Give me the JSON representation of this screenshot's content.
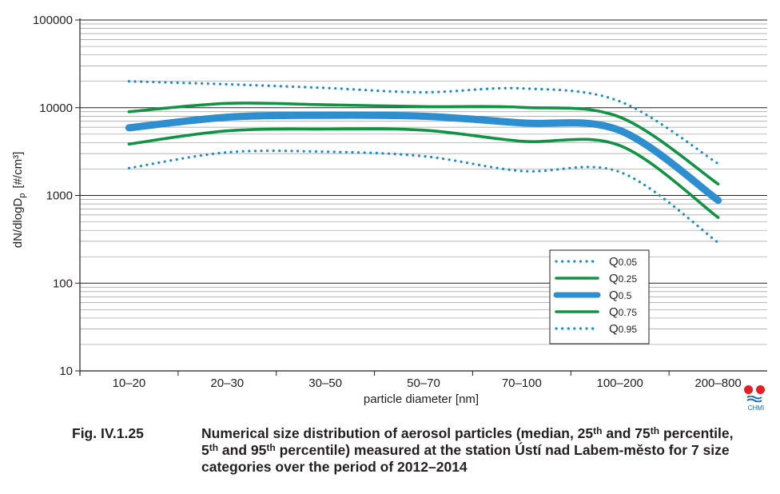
{
  "chart_data": {
    "type": "line",
    "title": "",
    "xlabel": "particle diameter [nm]",
    "ylabel": "dN/dlogD",
    "ylabel_sub": "p",
    "ylabel_unit": "[#/cm³]",
    "yscale": "log",
    "ylim": [
      10,
      100000
    ],
    "yticks": [
      {
        "value": 10,
        "label": "10"
      },
      {
        "value": 100,
        "label": "100"
      },
      {
        "value": 1000,
        "label": "1000"
      },
      {
        "value": 10000,
        "label": "10000"
      },
      {
        "value": 100000,
        "label": "100000"
      }
    ],
    "grid": true,
    "legend_position": "bottom-right",
    "categories": [
      "10–20",
      "20–30",
      "30–50",
      "50–70",
      "70–100",
      "100–200",
      "200–800"
    ],
    "series": [
      {
        "name": "Q",
        "sub": "0.05",
        "color": "#1b8ccc",
        "style": "dotted",
        "values": [
          2050,
          3100,
          3150,
          2800,
          1900,
          1850,
          290
        ]
      },
      {
        "name": "Q",
        "sub": "0.25",
        "color": "#109444",
        "style": "solid",
        "values": [
          3850,
          5450,
          5700,
          5550,
          4150,
          3700,
          560
        ]
      },
      {
        "name": "Q",
        "sub": "0.5",
        "color": "#2e8fd0",
        "style": "thick",
        "values": [
          5900,
          7800,
          8200,
          8000,
          6700,
          5500,
          880
        ]
      },
      {
        "name": "Q",
        "sub": "0.75",
        "color": "#109444",
        "style": "solid",
        "values": [
          9000,
          11200,
          10800,
          10300,
          10100,
          7800,
          1350
        ]
      },
      {
        "name": "Q",
        "sub": "0.95",
        "color": "#1b8ccc",
        "style": "dotted",
        "values": [
          20000,
          18500,
          16800,
          15000,
          16600,
          11800,
          2300
        ]
      }
    ]
  },
  "caption": {
    "label": "Fig. IV.1.25",
    "line1_a": "Numerical size distribution of aerosol particles (median, 25",
    "sup1": "th",
    "line1_b": " and 75",
    "sup2": "th",
    "line1_c": " percentile,",
    "line2_a": "5",
    "sup3": "th",
    "line2_b": " and 95",
    "sup4": "th",
    "line2_c": " percentile) measured at the station Ústí nad Labem-město for 7 size categories over the period of 2012–2014"
  },
  "logo": {
    "text": "CHMI"
  }
}
